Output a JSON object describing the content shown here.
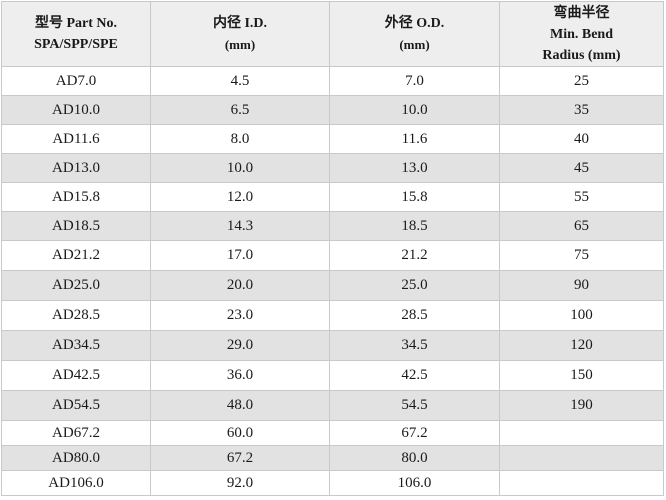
{
  "header": {
    "part_no_line1": "型号 Part No.",
    "part_no_line2": "SPA/SPP/SPE",
    "id_line1": "内径 I.D.",
    "id_line2": "(mm)",
    "od_line1": "外径 O.D.",
    "od_line2": "(mm)",
    "bend_line1": "弯曲半径",
    "bend_line2": "Min. Bend",
    "bend_line3": "Radius (mm)"
  },
  "rows": [
    {
      "part": "AD7.0",
      "id": "4.5",
      "od": "7.0",
      "bend": "25"
    },
    {
      "part": "AD10.0",
      "id": "6.5",
      "od": "10.0",
      "bend": "35"
    },
    {
      "part": "AD11.6",
      "id": "8.0",
      "od": "11.6",
      "bend": "40"
    },
    {
      "part": "AD13.0",
      "id": "10.0",
      "od": "13.0",
      "bend": "45"
    },
    {
      "part": "AD15.8",
      "id": "12.0",
      "od": "15.8",
      "bend": "55"
    },
    {
      "part": "AD18.5",
      "id": "14.3",
      "od": "18.5",
      "bend": "65"
    },
    {
      "part": "AD21.2",
      "id": "17.0",
      "od": "21.2",
      "bend": "75"
    },
    {
      "part": "AD25.0",
      "id": "20.0",
      "od": "25.0",
      "bend": "90"
    },
    {
      "part": "AD28.5",
      "id": "23.0",
      "od": "28.5",
      "bend": "100"
    },
    {
      "part": "AD34.5",
      "id": "29.0",
      "od": "34.5",
      "bend": "120"
    },
    {
      "part": "AD42.5",
      "id": "36.0",
      "od": "42.5",
      "bend": "150"
    },
    {
      "part": "AD54.5",
      "id": "48.0",
      "od": "54.5",
      "bend": "190"
    },
    {
      "part": "AD67.2",
      "id": "60.0",
      "od": "67.2",
      "bend": ""
    },
    {
      "part": "AD80.0",
      "id": "67.2",
      "od": "80.0",
      "bend": ""
    },
    {
      "part": "AD106.0",
      "id": "92.0",
      "od": "106.0",
      "bend": ""
    }
  ]
}
